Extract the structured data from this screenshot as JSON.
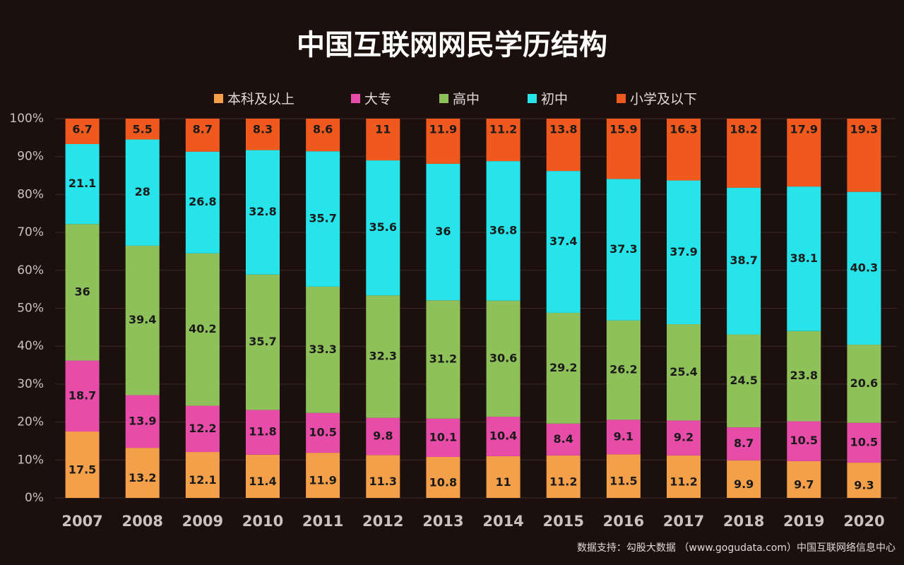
{
  "chart_data": {
    "type": "stacked-bar",
    "title": "中国互联网网民学历结构",
    "categories": [
      "2007",
      "2008",
      "2009",
      "2010",
      "2011",
      "2012",
      "2013",
      "2014",
      "2015",
      "2016",
      "2017",
      "2018",
      "2019",
      "2020"
    ],
    "series": [
      {
        "name": "本科及以上",
        "color": "#f4a04a",
        "values": [
          17.5,
          13.2,
          12.1,
          11.4,
          11.9,
          11.3,
          10.8,
          11,
          11.2,
          11.5,
          11.2,
          9.9,
          9.7,
          9.3
        ]
      },
      {
        "name": "大专",
        "color": "#e64ca8",
        "values": [
          18.7,
          13.9,
          12.2,
          11.8,
          10.5,
          9.8,
          10.1,
          10.4,
          8.4,
          9.1,
          9.2,
          8.7,
          10.5,
          10.5
        ]
      },
      {
        "name": "高中",
        "color": "#8fc15a",
        "values": [
          36,
          39.4,
          40.2,
          35.7,
          33.3,
          32.3,
          31.2,
          30.6,
          29.2,
          26.2,
          25.4,
          24.5,
          23.8,
          20.6
        ]
      },
      {
        "name": "初中",
        "color": "#27e4ea",
        "values": [
          21.1,
          28,
          26.8,
          32.8,
          35.7,
          35.6,
          36,
          36.8,
          37.4,
          37.3,
          37.9,
          38.7,
          38.1,
          40.3
        ]
      },
      {
        "name": "小学及以下",
        "color": "#f0591e",
        "values": [
          6.7,
          5.5,
          8.7,
          8.3,
          8.6,
          11,
          11.9,
          11.2,
          13.8,
          15.9,
          16.3,
          18.2,
          17.9,
          19.3
        ]
      }
    ],
    "ylim": [
      0,
      100
    ],
    "yticks": [
      {
        "value": 0,
        "label": "0%"
      },
      {
        "value": 10,
        "label": "10%"
      },
      {
        "value": 20,
        "label": "20%"
      },
      {
        "value": 30,
        "label": "30%"
      },
      {
        "value": 40,
        "label": "40%"
      },
      {
        "value": 50,
        "label": "50%"
      },
      {
        "value": 60,
        "label": "60%"
      },
      {
        "value": 70,
        "label": "70%"
      },
      {
        "value": 80,
        "label": "80%"
      },
      {
        "value": 90,
        "label": "90%"
      },
      {
        "value": 100,
        "label": "100%"
      }
    ],
    "grid": true,
    "source": "数据支持：勾股大数据 （www.gogudata.com）中国互联网络信息中心"
  }
}
